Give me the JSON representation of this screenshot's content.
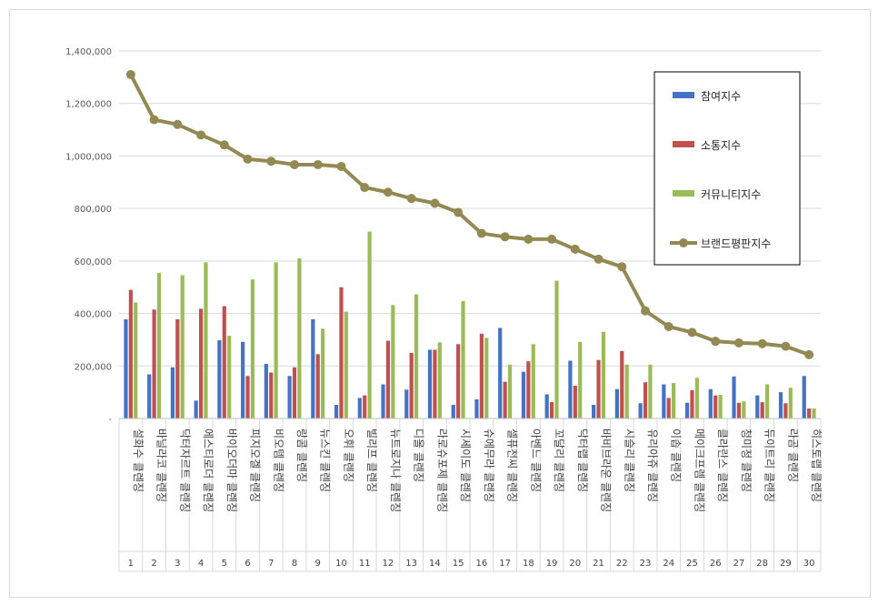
{
  "chart_data": {
    "type": "bar",
    "title": "",
    "xlabel": "",
    "ylabel": "",
    "ylim": [
      0,
      1400000
    ],
    "yticks": [
      0,
      200000,
      400000,
      600000,
      800000,
      1000000,
      1200000,
      1400000
    ],
    "ytick_labels": [
      "-",
      "200,000",
      "400,000",
      "600,000",
      "800,000",
      "1,000,000",
      "1,200,000",
      "1,400,000"
    ],
    "grid": true,
    "legend_position": "right",
    "categories": [
      "설화수 클렌징",
      "바닐라코 클렌징",
      "닥터자르트 클렌징",
      "에스티로더 클렌징",
      "바이오더마 클렌징",
      "피지오겔 클렌징",
      "비오템 클렌징",
      "랑콤 클렌징",
      "뉴스킨 클렌징",
      "오휘 클렌징",
      "빌리프 클렌징",
      "뉴트로지나 클렌징",
      "디올 클렌징",
      "라로슈포제 클렌징",
      "시세이도 클렌징",
      "슈에무라 클렌징",
      "셀퓨전씨 클렌징",
      "아벤느 클렌징",
      "꼬달리 클렌징",
      "닥터랩 클렌징",
      "바비브라운 클렌징",
      "시슬리 클렌징",
      "유리아쥬 클렌징",
      "이솝 클렌징",
      "메이크프렘 클렌징",
      "클라란스 클렌징",
      "청미정 클렌징",
      "듀이트리 클렌징",
      "라곰 클렌징",
      "히스토랩 클렌징"
    ],
    "ranks": [
      "1",
      "2",
      "3",
      "4",
      "5",
      "6",
      "7",
      "8",
      "9",
      "10",
      "11",
      "12",
      "13",
      "14",
      "15",
      "16",
      "17",
      "18",
      "19",
      "20",
      "21",
      "22",
      "23",
      "24",
      "25",
      "26",
      "27",
      "28",
      "29",
      "30"
    ],
    "series": [
      {
        "name": "참여지수",
        "type": "bar",
        "color": "#4472c4",
        "values": [
          378000,
          168000,
          195000,
          68000,
          298000,
          292000,
          208000,
          162000,
          378000,
          52000,
          78000,
          130000,
          110000,
          262000,
          52000,
          73000,
          345000,
          178000,
          92000,
          220000,
          52000,
          112000,
          58000,
          130000,
          60000,
          112000,
          160000,
          88000,
          100000,
          162000
        ]
      },
      {
        "name": "소통지수",
        "type": "bar",
        "color": "#c0504d",
        "values": [
          490000,
          415000,
          378000,
          418000,
          428000,
          162000,
          175000,
          195000,
          245000,
          500000,
          88000,
          296000,
          250000,
          262000,
          283000,
          323000,
          140000,
          218000,
          62000,
          125000,
          223000,
          257000,
          138000,
          78000,
          108000,
          88000,
          60000,
          62000,
          58000,
          38000
        ]
      },
      {
        "name": "커뮤니티지수",
        "type": "bar",
        "color": "#9bbb59",
        "values": [
          442000,
          555000,
          546000,
          595000,
          315000,
          530000,
          595000,
          610000,
          342000,
          407000,
          712000,
          432000,
          473000,
          290000,
          447000,
          307000,
          205000,
          283000,
          525000,
          292000,
          330000,
          205000,
          205000,
          135000,
          155000,
          90000,
          65000,
          130000,
          117000,
          38000
        ]
      },
      {
        "name": "브랜드평판지수",
        "type": "line",
        "color": "#938953",
        "values": [
          1310000,
          1138000,
          1120000,
          1080000,
          1042000,
          988000,
          980000,
          967000,
          967000,
          960000,
          880000,
          862000,
          838000,
          820000,
          785000,
          705000,
          692000,
          683000,
          683000,
          645000,
          607000,
          578000,
          410000,
          350000,
          328000,
          294000,
          288000,
          285000,
          275000,
          243000
        ]
      }
    ]
  }
}
